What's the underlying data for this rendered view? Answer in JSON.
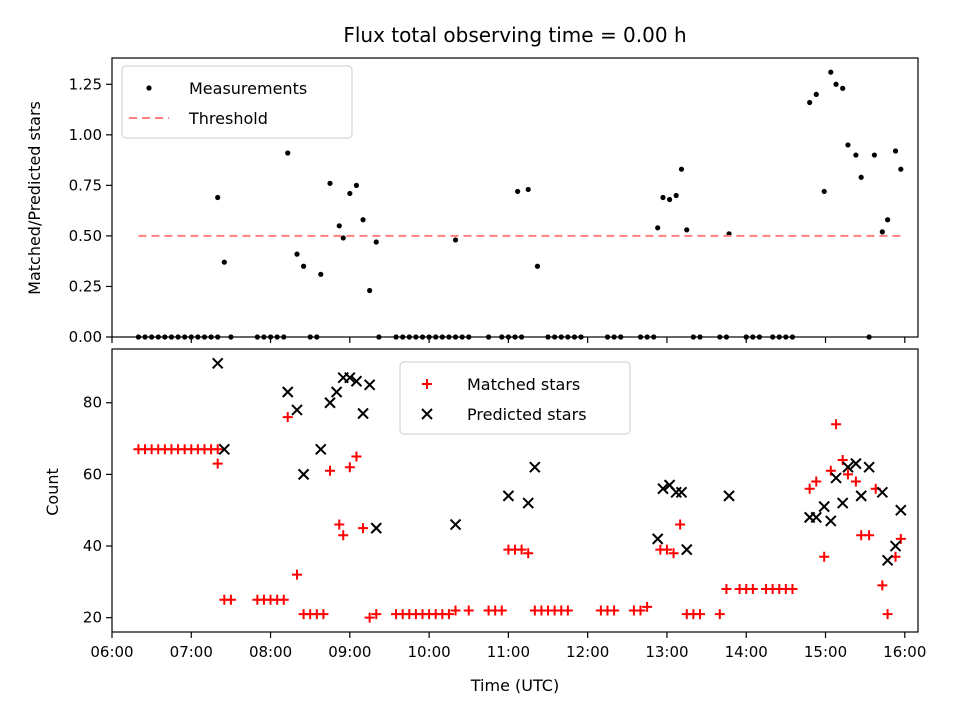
{
  "chart_data": [
    {
      "type": "scatter",
      "title": "Flux total observing time = 0.00 h",
      "xlabel": "",
      "ylabel": "Matched/Predicted stars",
      "xlim": [
        "06:00",
        "16:10"
      ],
      "ylim": [
        0,
        1.38
      ],
      "yticks": [
        0.0,
        0.25,
        0.5,
        0.75,
        1.0,
        1.25
      ],
      "ytick_labels": [
        "0.00",
        "0.25",
        "0.50",
        "0.75",
        "1.00",
        "1.25"
      ],
      "legend": {
        "position": "top-left"
      },
      "series": [
        {
          "name": "Measurements",
          "marker": "dot",
          "color": "#000000",
          "points": [
            [
              "06:20",
              0
            ],
            [
              "06:25",
              0
            ],
            [
              "06:30",
              0
            ],
            [
              "06:35",
              0
            ],
            [
              "06:40",
              0
            ],
            [
              "06:45",
              0
            ],
            [
              "06:50",
              0
            ],
            [
              "06:55",
              0
            ],
            [
              "07:00",
              0
            ],
            [
              "07:05",
              0
            ],
            [
              "07:10",
              0
            ],
            [
              "07:15",
              0
            ],
            [
              "07:20",
              0
            ],
            [
              "07:20",
              0.69
            ],
            [
              "07:25",
              0.37
            ],
            [
              "07:30",
              0
            ],
            [
              "07:50",
              0
            ],
            [
              "07:55",
              0
            ],
            [
              "08:00",
              0
            ],
            [
              "08:05",
              0
            ],
            [
              "08:10",
              0
            ],
            [
              "08:13",
              0.91
            ],
            [
              "08:20",
              0.41
            ],
            [
              "08:25",
              0.35
            ],
            [
              "08:30",
              0
            ],
            [
              "08:35",
              0
            ],
            [
              "08:38",
              0.31
            ],
            [
              "08:45",
              0.76
            ],
            [
              "08:52",
              0.55
            ],
            [
              "08:55",
              0.49
            ],
            [
              "09:00",
              0.71
            ],
            [
              "09:05",
              0.75
            ],
            [
              "09:10",
              0.58
            ],
            [
              "09:15",
              0.23
            ],
            [
              "09:20",
              0.47
            ],
            [
              "09:22",
              0
            ],
            [
              "09:35",
              0
            ],
            [
              "09:40",
              0
            ],
            [
              "09:45",
              0
            ],
            [
              "09:50",
              0
            ],
            [
              "09:55",
              0
            ],
            [
              "10:00",
              0
            ],
            [
              "10:05",
              0
            ],
            [
              "10:10",
              0
            ],
            [
              "10:15",
              0
            ],
            [
              "10:20",
              0
            ],
            [
              "10:25",
              0
            ],
            [
              "10:30",
              0
            ],
            [
              "10:20",
              0.48
            ],
            [
              "10:45",
              0
            ],
            [
              "10:55",
              0
            ],
            [
              "11:00",
              0
            ],
            [
              "11:05",
              0
            ],
            [
              "11:10",
              0
            ],
            [
              "11:07",
              0.72
            ],
            [
              "11:15",
              0.73
            ],
            [
              "11:22",
              0.35
            ],
            [
              "11:30",
              0
            ],
            [
              "11:35",
              0
            ],
            [
              "11:40",
              0
            ],
            [
              "11:45",
              0
            ],
            [
              "11:50",
              0
            ],
            [
              "11:55",
              0
            ],
            [
              "12:15",
              0
            ],
            [
              "12:20",
              0
            ],
            [
              "12:25",
              0
            ],
            [
              "12:40",
              0
            ],
            [
              "12:45",
              0
            ],
            [
              "12:50",
              0
            ],
            [
              "12:53",
              0.54
            ],
            [
              "12:57",
              0.69
            ],
            [
              "13:02",
              0.68
            ],
            [
              "13:07",
              0.7
            ],
            [
              "13:11",
              0.83
            ],
            [
              "13:15",
              0.53
            ],
            [
              "13:20",
              0
            ],
            [
              "13:25",
              0
            ],
            [
              "13:40",
              0
            ],
            [
              "13:45",
              0
            ],
            [
              "13:47",
              0.51
            ],
            [
              "14:00",
              0
            ],
            [
              "14:05",
              0
            ],
            [
              "14:10",
              0
            ],
            [
              "14:20",
              0
            ],
            [
              "14:25",
              0
            ],
            [
              "14:30",
              0
            ],
            [
              "14:35",
              0
            ],
            [
              "14:48",
              1.16
            ],
            [
              "14:53",
              1.2
            ],
            [
              "14:59",
              0.72
            ],
            [
              "15:04",
              1.31
            ],
            [
              "15:08",
              1.25
            ],
            [
              "15:13",
              1.23
            ],
            [
              "15:17",
              0.95
            ],
            [
              "15:23",
              0.9
            ],
            [
              "15:27",
              0.79
            ],
            [
              "15:33",
              0
            ],
            [
              "15:37",
              0.9
            ],
            [
              "15:43",
              0.52
            ],
            [
              "15:47",
              0.58
            ],
            [
              "15:53",
              0.92
            ],
            [
              "15:57",
              0.83
            ]
          ]
        },
        {
          "name": "Threshold",
          "style": "dashed line",
          "color": "#ff8080",
          "points": [
            [
              "06:20",
              0.5
            ],
            [
              "15:57",
              0.5
            ]
          ]
        }
      ]
    },
    {
      "type": "scatter",
      "title": "",
      "xlabel": "Time (UTC)",
      "ylabel": "Count",
      "xlim": [
        "06:00",
        "16:10"
      ],
      "ylim": [
        16,
        95
      ],
      "yticks": [
        20,
        40,
        60,
        80
      ],
      "ytick_labels": [
        "20",
        "40",
        "60",
        "80"
      ],
      "xticks": [
        "06:00",
        "07:00",
        "08:00",
        "09:00",
        "10:00",
        "11:00",
        "12:00",
        "13:00",
        "14:00",
        "15:00",
        "16:00"
      ],
      "legend": {
        "position": "top-center"
      },
      "series": [
        {
          "name": "Matched stars",
          "marker": "plus",
          "color": "#ff0000",
          "points": [
            [
              "06:20",
              67
            ],
            [
              "06:25",
              67
            ],
            [
              "06:30",
              67
            ],
            [
              "06:35",
              67
            ],
            [
              "06:40",
              67
            ],
            [
              "06:45",
              67
            ],
            [
              "06:50",
              67
            ],
            [
              "06:55",
              67
            ],
            [
              "07:00",
              67
            ],
            [
              "07:05",
              67
            ],
            [
              "07:10",
              67
            ],
            [
              "07:15",
              67
            ],
            [
              "07:20",
              67
            ],
            [
              "07:20",
              63
            ],
            [
              "07:25",
              25
            ],
            [
              "07:30",
              25
            ],
            [
              "07:50",
              25
            ],
            [
              "07:55",
              25
            ],
            [
              "08:00",
              25
            ],
            [
              "08:05",
              25
            ],
            [
              "08:10",
              25
            ],
            [
              "08:13",
              76
            ],
            [
              "08:20",
              32
            ],
            [
              "08:25",
              21
            ],
            [
              "08:30",
              21
            ],
            [
              "08:35",
              21
            ],
            [
              "08:40",
              21
            ],
            [
              "08:45",
              61
            ],
            [
              "08:52",
              46
            ],
            [
              "08:55",
              43
            ],
            [
              "09:00",
              62
            ],
            [
              "09:05",
              65
            ],
            [
              "09:10",
              45
            ],
            [
              "09:15",
              20
            ],
            [
              "09:20",
              21
            ],
            [
              "09:35",
              21
            ],
            [
              "09:40",
              21
            ],
            [
              "09:45",
              21
            ],
            [
              "09:50",
              21
            ],
            [
              "09:55",
              21
            ],
            [
              "10:00",
              21
            ],
            [
              "10:05",
              21
            ],
            [
              "10:10",
              21
            ],
            [
              "10:15",
              21
            ],
            [
              "10:20",
              22
            ],
            [
              "10:30",
              22
            ],
            [
              "10:45",
              22
            ],
            [
              "10:50",
              22
            ],
            [
              "10:55",
              22
            ],
            [
              "11:00",
              39
            ],
            [
              "11:05",
              39
            ],
            [
              "11:10",
              39
            ],
            [
              "11:15",
              38
            ],
            [
              "11:20",
              22
            ],
            [
              "11:25",
              22
            ],
            [
              "11:30",
              22
            ],
            [
              "11:35",
              22
            ],
            [
              "11:40",
              22
            ],
            [
              "11:45",
              22
            ],
            [
              "12:10",
              22
            ],
            [
              "12:15",
              22
            ],
            [
              "12:20",
              22
            ],
            [
              "12:35",
              22
            ],
            [
              "12:40",
              22
            ],
            [
              "12:45",
              23
            ],
            [
              "12:55",
              39
            ],
            [
              "13:00",
              39
            ],
            [
              "13:05",
              38
            ],
            [
              "13:10",
              46
            ],
            [
              "13:15",
              21
            ],
            [
              "13:20",
              21
            ],
            [
              "13:25",
              21
            ],
            [
              "13:40",
              21
            ],
            [
              "13:45",
              28
            ],
            [
              "13:55",
              28
            ],
            [
              "14:00",
              28
            ],
            [
              "14:05",
              28
            ],
            [
              "14:15",
              28
            ],
            [
              "14:20",
              28
            ],
            [
              "14:25",
              28
            ],
            [
              "14:30",
              28
            ],
            [
              "14:35",
              28
            ],
            [
              "14:48",
              56
            ],
            [
              "14:53",
              58
            ],
            [
              "14:59",
              37
            ],
            [
              "15:04",
              61
            ],
            [
              "15:08",
              74
            ],
            [
              "15:13",
              64
            ],
            [
              "15:17",
              60
            ],
            [
              "15:23",
              58
            ],
            [
              "15:27",
              43
            ],
            [
              "15:33",
              43
            ],
            [
              "15:38",
              56
            ],
            [
              "15:43",
              29
            ],
            [
              "15:47",
              21
            ],
            [
              "15:53",
              37
            ],
            [
              "15:57",
              42
            ]
          ]
        },
        {
          "name": "Predicted stars",
          "marker": "x",
          "color": "#000000",
          "points": [
            [
              "07:20",
              91
            ],
            [
              "07:25",
              67
            ],
            [
              "08:13",
              83
            ],
            [
              "08:20",
              78
            ],
            [
              "08:25",
              60
            ],
            [
              "08:38",
              67
            ],
            [
              "08:45",
              80
            ],
            [
              "08:50",
              83
            ],
            [
              "08:55",
              87
            ],
            [
              "09:00",
              87
            ],
            [
              "09:05",
              86
            ],
            [
              "09:10",
              77
            ],
            [
              "09:15",
              85
            ],
            [
              "09:20",
              45
            ],
            [
              "10:20",
              46
            ],
            [
              "11:00",
              54
            ],
            [
              "11:15",
              52
            ],
            [
              "11:20",
              62
            ],
            [
              "12:53",
              42
            ],
            [
              "12:57",
              56
            ],
            [
              "13:02",
              57
            ],
            [
              "13:07",
              55
            ],
            [
              "13:11",
              55
            ],
            [
              "13:15",
              39
            ],
            [
              "13:47",
              54
            ],
            [
              "14:48",
              48
            ],
            [
              "14:53",
              48
            ],
            [
              "14:59",
              51
            ],
            [
              "15:04",
              47
            ],
            [
              "15:08",
              59
            ],
            [
              "15:13",
              52
            ],
            [
              "15:17",
              62
            ],
            [
              "15:23",
              63
            ],
            [
              "15:27",
              54
            ],
            [
              "15:33",
              62
            ],
            [
              "15:43",
              55
            ],
            [
              "15:47",
              36
            ],
            [
              "15:53",
              40
            ],
            [
              "15:57",
              50
            ]
          ]
        }
      ]
    }
  ]
}
